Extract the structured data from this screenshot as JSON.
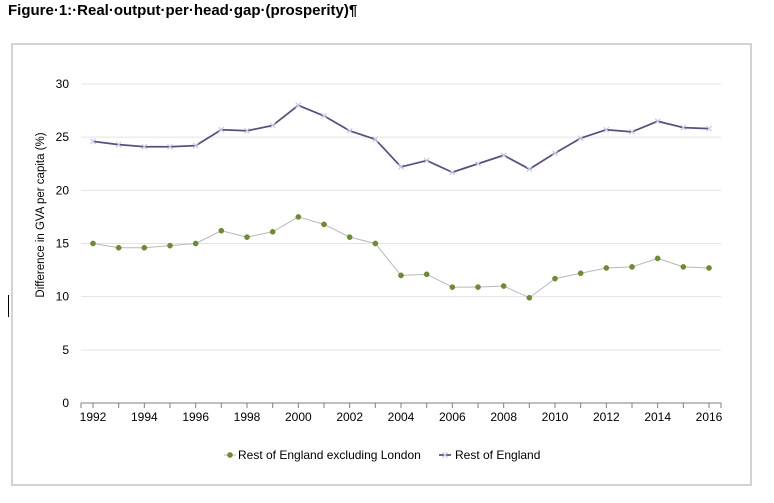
{
  "figure_title": "Figure·1:·Real·output·per·head·gap·(prosperity)¶",
  "colors": {
    "series_1_line": "#b8b8b8",
    "series_1_marker": "#6e8a37",
    "series_2_line": "#5e4d7c",
    "series_2_marker": "#c3cde3",
    "grid": "#e3e3e3",
    "axis": "#7f7f7f"
  },
  "chart_data": {
    "type": "line",
    "title": "",
    "xlabel": "",
    "ylabel": "Difference in GVA per capita (%)",
    "ylim": [
      0,
      30
    ],
    "yticks": [
      0,
      5,
      10,
      15,
      20,
      25,
      30
    ],
    "xlim": [
      1992,
      2016
    ],
    "xticks": [
      1992,
      1994,
      1996,
      1998,
      2000,
      2002,
      2004,
      2006,
      2008,
      2010,
      2012,
      2014,
      2016
    ],
    "grid": true,
    "legend_position": "bottom",
    "x": [
      1992,
      1993,
      1994,
      1995,
      1996,
      1997,
      1998,
      1999,
      2000,
      2001,
      2002,
      2003,
      2004,
      2005,
      2006,
      2007,
      2008,
      2009,
      2010,
      2011,
      2012,
      2013,
      2014,
      2015,
      2016
    ],
    "series": [
      {
        "name": "Rest of England excluding London",
        "values": [
          15.0,
          14.6,
          14.6,
          14.8,
          15.0,
          16.2,
          15.6,
          16.1,
          17.5,
          16.8,
          15.6,
          15.0,
          12.0,
          12.1,
          10.9,
          10.9,
          11.0,
          9.9,
          11.7,
          12.2,
          12.7,
          12.8,
          13.6,
          12.8,
          12.7
        ]
      },
      {
        "name": "Rest of England",
        "values": [
          24.6,
          24.3,
          24.1,
          24.1,
          24.2,
          25.7,
          25.6,
          26.1,
          28.0,
          27.0,
          25.6,
          24.8,
          22.2,
          22.8,
          21.7,
          22.5,
          23.3,
          22.0,
          23.5,
          24.9,
          25.7,
          25.5,
          26.5,
          25.9,
          25.8
        ]
      }
    ]
  }
}
